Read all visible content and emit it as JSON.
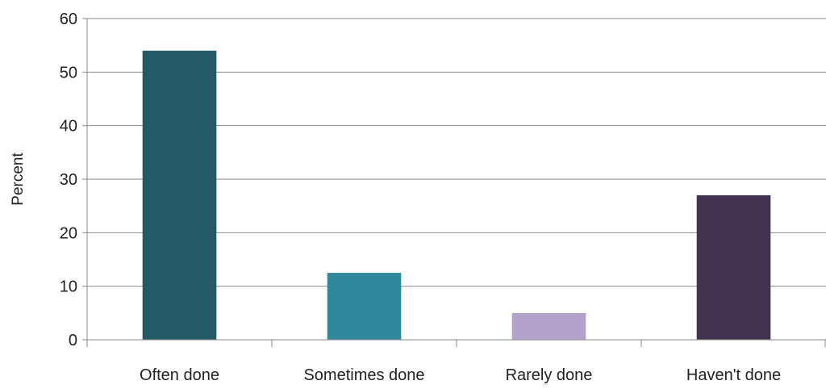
{
  "chart_data": {
    "type": "bar",
    "title": "",
    "xlabel": "",
    "ylabel": "Percent",
    "ylim": [
      0,
      60
    ],
    "yticks": [
      0,
      10,
      20,
      30,
      40,
      50,
      60
    ],
    "grid": true,
    "legend": "none",
    "categories": [
      "Often done",
      "Sometimes done",
      "Rarely done",
      "Haven't done"
    ],
    "values": [
      54,
      12.5,
      5,
      27
    ],
    "colors": [
      "#235a66",
      "#31879c",
      "#b3a2c9",
      "#41324f"
    ]
  }
}
